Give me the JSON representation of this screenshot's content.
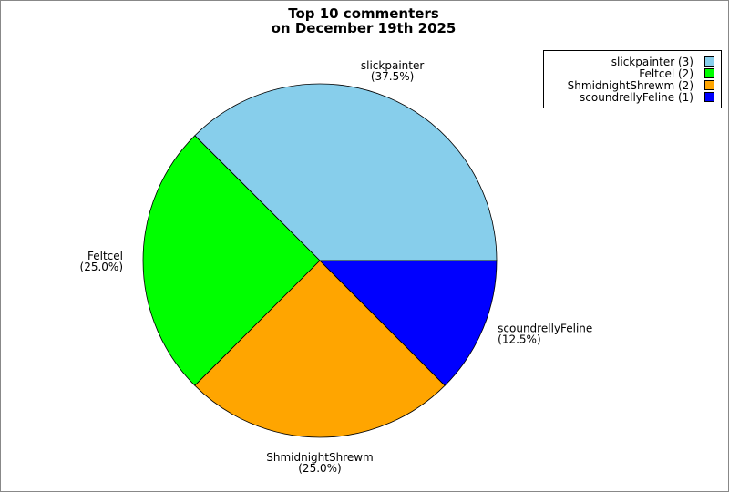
{
  "chart_data": {
    "type": "pie",
    "title": [
      "Top 10 commenters",
      "on December 19th 2025"
    ],
    "slices": [
      {
        "name": "slickpainter",
        "count": 3,
        "percent": "37.5%",
        "color": "#87CEEB"
      },
      {
        "name": "Feltcel",
        "count": 2,
        "percent": "25.0%",
        "color": "#00FF00"
      },
      {
        "name": "ShmidnightShrewm",
        "count": 2,
        "percent": "25.0%",
        "color": "#FFA500"
      },
      {
        "name": "scoundrellyFeline",
        "count": 1,
        "percent": "12.5%",
        "color": "#0000FF"
      }
    ],
    "legend": {
      "position": "top-right",
      "entries": [
        "slickpainter (3)",
        "Feltcel (2)",
        "ShmidnightShrewm (2)",
        "scoundrellyFeline (1)"
      ]
    }
  }
}
